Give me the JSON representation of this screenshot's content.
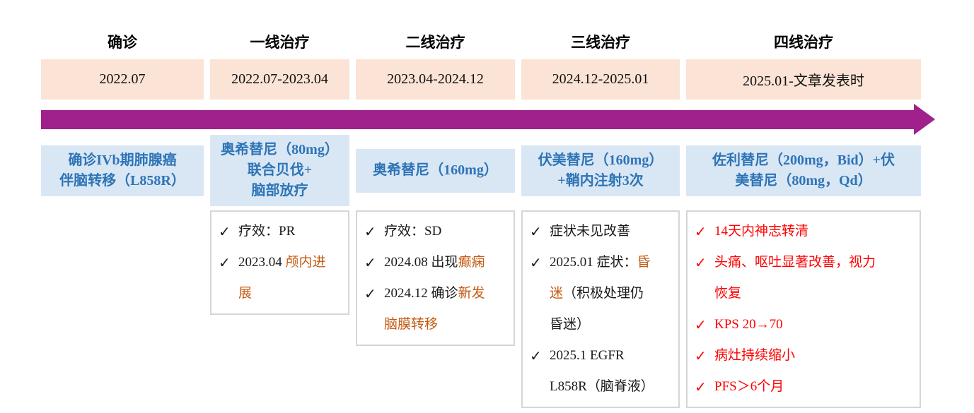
{
  "icons": {
    "check": "✓"
  },
  "colors": {
    "date_box_fill": "#FBE3D5",
    "treatment_box_fill": "#D9E7F5",
    "treatment_text_blue": "#2E74B6",
    "arrow_purple": "#A0218C",
    "highlight_orange": "#C55A11",
    "highlight_red": "#FF0000",
    "body_black": "#1A1A1A",
    "outcome_border_gray": "#D6D6D6"
  },
  "columns": [
    {
      "header": "确诊",
      "period": "2022.07",
      "treatment_lines": [
        "确诊IVb期肺腺癌",
        "伴脑转移（L858R）"
      ]
    },
    {
      "header": "一线治疗",
      "period": "2022.07-2023.04",
      "treatment_lines": [
        "奥希替尼（80mg）",
        "联合贝伐+",
        "脑部放疗"
      ],
      "outcomes": [
        {
          "lines": [
            [
              {
                "text": "疗效：PR",
                "color": "black"
              }
            ]
          ]
        },
        {
          "lines": [
            [
              {
                "text": "2023.04 ",
                "color": "black"
              },
              {
                "text": "颅内进",
                "color": "orange"
              }
            ],
            [
              {
                "text": "展",
                "color": "orange"
              }
            ]
          ]
        }
      ]
    },
    {
      "header": "二线治疗",
      "period": "2023.04-2024.12",
      "treatment_lines": [
        "奥希替尼（160mg）"
      ],
      "outcomes": [
        {
          "lines": [
            [
              {
                "text": "疗效：SD",
                "color": "black"
              }
            ]
          ]
        },
        {
          "lines": [
            [
              {
                "text": "2024.08 出现",
                "color": "black"
              },
              {
                "text": "癫痫",
                "color": "orange"
              }
            ]
          ]
        },
        {
          "lines": [
            [
              {
                "text": "2024.12 确诊",
                "color": "black"
              },
              {
                "text": "新发",
                "color": "orange"
              }
            ],
            [
              {
                "text": "脑膜转移",
                "color": "orange"
              }
            ]
          ]
        }
      ]
    },
    {
      "header": "三线治疗",
      "period": "2024.12-2025.01",
      "treatment_lines": [
        "伏美替尼（160mg）",
        "+鞘内注射3次"
      ],
      "outcomes": [
        {
          "lines": [
            [
              {
                "text": "症状未见改善",
                "color": "black"
              }
            ]
          ]
        },
        {
          "lines": [
            [
              {
                "text": "2025.01 症状：",
                "color": "black"
              },
              {
                "text": "昏",
                "color": "orange"
              }
            ],
            [
              {
                "text": "迷",
                "color": "orange"
              },
              {
                "text": "（积极处理仍",
                "color": "black"
              }
            ],
            [
              {
                "text": "昏迷）",
                "color": "black"
              }
            ]
          ]
        },
        {
          "lines": [
            [
              {
                "text": "2025.1 EGFR",
                "color": "black"
              }
            ],
            [
              {
                "text": "L858R（脑脊液）",
                "color": "black"
              }
            ]
          ]
        }
      ]
    },
    {
      "header": "四线治疗",
      "period": "2025.01-文章发表时",
      "treatment_lines": [
        "佐利替尼（200mg，Bid）+伏",
        "美替尼（80mg，Qd）"
      ],
      "outcomes": [
        {
          "lines": [
            [
              {
                "text": "14天内神志转清",
                "color": "red"
              }
            ]
          ]
        },
        {
          "lines": [
            [
              {
                "text": "头痛、呕吐显著改善，视力",
                "color": "red"
              }
            ],
            [
              {
                "text": "恢复",
                "color": "red"
              }
            ]
          ]
        },
        {
          "lines": [
            [
              {
                "text": "KPS 20→70",
                "color": "red"
              }
            ]
          ]
        },
        {
          "lines": [
            [
              {
                "text": "病灶持续缩小",
                "color": "red"
              }
            ]
          ]
        },
        {
          "lines": [
            [
              {
                "text": "PFS＞6个月",
                "color": "red"
              }
            ]
          ]
        }
      ]
    }
  ]
}
